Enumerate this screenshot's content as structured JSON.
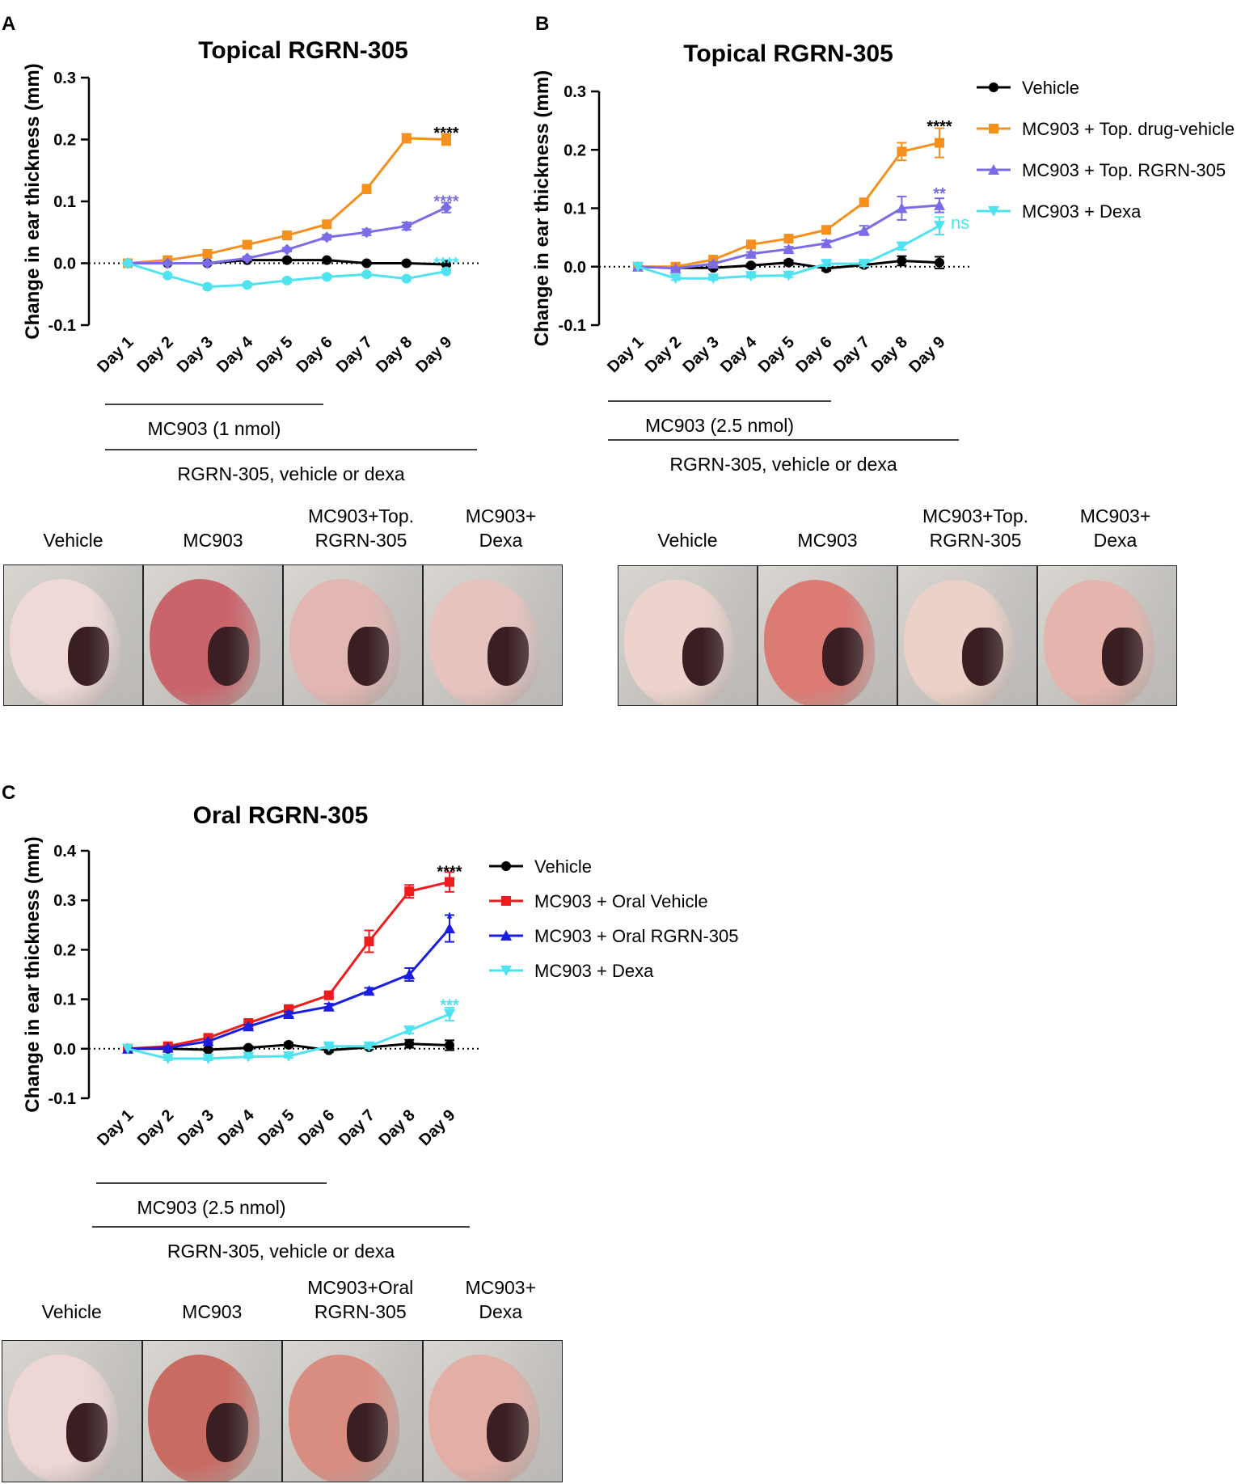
{
  "panels": [
    {
      "letter": "A",
      "title": "Topical RGRN-305",
      "bar1_label": "MC903 (1 nmol)",
      "bar2_label": "RGRN-305, vehicle or dexa",
      "photo_captions": [
        [
          "Vehicle"
        ],
        [
          "MC903"
        ],
        [
          "MC903+Top.",
          "RGRN-305"
        ],
        [
          "MC903+",
          "Dexa"
        ]
      ],
      "photo_tints": [
        "#eed9d6",
        "#c9656a",
        "#e2b6b2",
        "#e6c3bf"
      ]
    },
    {
      "letter": "B",
      "title": "Topical RGRN-305",
      "bar1_label": "MC903 (2.5 nmol)",
      "bar2_label": "RGRN-305, vehicle or dexa",
      "photo_captions": [
        [
          "Vehicle"
        ],
        [
          "MC903"
        ],
        [
          "MC903+Top.",
          "RGRN-305"
        ],
        [
          "MC903+",
          "Dexa"
        ]
      ],
      "photo_tints": [
        "#ecd3cd",
        "#dc7a74",
        "#ecd1c8",
        "#e5b5ad"
      ]
    },
    {
      "letter": "C",
      "title": "Oral RGRN-305",
      "bar1_label": "MC903 (2.5 nmol)",
      "bar2_label": "RGRN-305, vehicle or dexa",
      "photo_captions": [
        [
          "Vehicle"
        ],
        [
          "MC903"
        ],
        [
          "MC903+Oral",
          "RGRN-305"
        ],
        [
          "MC903+",
          "Dexa"
        ]
      ],
      "photo_tints": [
        "#edd6d3",
        "#c96b62",
        "#d98c80",
        "#e3aea5"
      ]
    }
  ],
  "chart_data": [
    {
      "type": "line",
      "title": "Topical RGRN-305",
      "ylabel": "Change in ear thickness (mm)",
      "xlabel": "",
      "categories": [
        "Day 1",
        "Day 2",
        "Day 3",
        "Day 4",
        "Day 5",
        "Day 6",
        "Day 7",
        "Day 8",
        "Day 9"
      ],
      "ylim": [
        -0.1,
        0.3
      ],
      "yticks": [
        -0.1,
        0.0,
        0.1,
        0.2,
        0.3
      ],
      "ytick_labels": [
        "-0.1",
        "0.0",
        "0.1",
        "0.2",
        "0.3"
      ],
      "series": [
        {
          "name": "Vehicle",
          "color": "#000000",
          "marker": "circle",
          "values": [
            0.0,
            0.0,
            0.0,
            0.005,
            0.005,
            0.005,
            0.0,
            0.0,
            -0.002
          ],
          "errors": [
            0,
            0,
            0,
            0.002,
            0.002,
            0.002,
            0.002,
            0.002,
            0.002
          ]
        },
        {
          "name": "MC903 + Top. drug-vehicle",
          "color": "#f5901e",
          "marker": "square",
          "values": [
            0.0,
            0.005,
            0.015,
            0.03,
            0.045,
            0.063,
            0.12,
            0.202,
            0.2
          ],
          "errors": [
            0,
            0.002,
            0.003,
            0.003,
            0.004,
            0.004,
            0.007,
            0.007,
            0.009
          ]
        },
        {
          "name": "MC903 + Top. RGRN-305",
          "color": "#7a6ce6",
          "marker": "diamond",
          "values": [
            0.0,
            0.0,
            0.0,
            0.008,
            0.022,
            0.042,
            0.05,
            0.06,
            0.09
          ],
          "errors": [
            0,
            0.002,
            0.002,
            0.003,
            0.003,
            0.004,
            0.005,
            0.006,
            0.008
          ]
        },
        {
          "name": "MC903 + Dexa",
          "color": "#4fe3f0",
          "marker": "circle",
          "values": [
            0.0,
            -0.02,
            -0.038,
            -0.035,
            -0.028,
            -0.022,
            -0.018,
            -0.025,
            -0.013
          ],
          "errors": [
            0,
            0.002,
            0.003,
            0.003,
            0.003,
            0.003,
            0.003,
            0.003,
            0.003
          ]
        }
      ],
      "annotations": [
        {
          "text": "****",
          "color": "#000000",
          "x": "Day 9",
          "y": 0.22
        },
        {
          "text": "****",
          "color": "#7a6ce6",
          "x": "Day 9",
          "y": 0.11
        },
        {
          "text": "****",
          "color": "#4fe3f0",
          "x": "Day 9",
          "y": 0.01
        }
      ],
      "legend": null
    },
    {
      "type": "line",
      "title": "Topical RGRN-305",
      "ylabel": "Change in ear thickness (mm)",
      "xlabel": "",
      "categories": [
        "Day 1",
        "Day 2",
        "Day 3",
        "Day 4",
        "Day 5",
        "Day 6",
        "Day 7",
        "Day 8",
        "Day 9"
      ],
      "ylim": [
        -0.1,
        0.3
      ],
      "yticks": [
        -0.1,
        0.0,
        0.1,
        0.2,
        0.3
      ],
      "ytick_labels": [
        "-0.1",
        "0.0",
        "0.1",
        "0.2",
        "0.3"
      ],
      "series": [
        {
          "name": "Vehicle",
          "color": "#000000",
          "marker": "circle",
          "values": [
            0.0,
            -0.002,
            -0.002,
            0.002,
            0.007,
            -0.003,
            0.003,
            0.01,
            0.007
          ],
          "errors": [
            0,
            0.002,
            0.003,
            0.003,
            0.004,
            0.004,
            0.004,
            0.008,
            0.01
          ]
        },
        {
          "name": "MC903 + Top. drug-vehicle",
          "color": "#f5901e",
          "marker": "square",
          "values": [
            0.0,
            0.0,
            0.012,
            0.038,
            0.048,
            0.063,
            0.11,
            0.197,
            0.212
          ],
          "errors": [
            0,
            0.002,
            0.003,
            0.003,
            0.004,
            0.004,
            0.005,
            0.015,
            0.025
          ]
        },
        {
          "name": "MC903 + Top. RGRN-305",
          "color": "#7a6ce6",
          "marker": "triangle",
          "values": [
            0.0,
            -0.003,
            0.005,
            0.022,
            0.03,
            0.04,
            0.062,
            0.1,
            0.105
          ],
          "errors": [
            0,
            0.002,
            0.003,
            0.003,
            0.004,
            0.005,
            0.008,
            0.02,
            0.012
          ]
        },
        {
          "name": "MC903 + Dexa",
          "color": "#4fe3f0",
          "marker": "inverted-triangle",
          "values": [
            0.0,
            -0.02,
            -0.02,
            -0.016,
            -0.015,
            0.005,
            0.005,
            0.035,
            0.07
          ],
          "errors": [
            0,
            0.003,
            0.003,
            0.003,
            0.003,
            0.004,
            0.004,
            0.006,
            0.015
          ]
        }
      ],
      "annotations": [
        {
          "text": "****",
          "color": "#000000",
          "x": "Day 9",
          "y": 0.25
        },
        {
          "text": "**",
          "color": "#7a6ce6",
          "x": "Day 9",
          "y": 0.135
        },
        {
          "text": "ns",
          "color": "#4fe3f0",
          "x": "Day 9",
          "y": 0.07
        }
      ],
      "legend": {
        "placement": "right",
        "entries": [
          "Vehicle",
          "MC903 + Top. drug-vehicle",
          "MC903 + Top. RGRN-305",
          "MC903 + Dexa"
        ]
      }
    },
    {
      "type": "line",
      "title": "Oral RGRN-305",
      "ylabel": "Change in ear thickness (mm)",
      "xlabel": "",
      "categories": [
        "Day 1",
        "Day 2",
        "Day 3",
        "Day 4",
        "Day 5",
        "Day 6",
        "Day 7",
        "Day 8",
        "Day 9"
      ],
      "ylim": [
        -0.1,
        0.4
      ],
      "yticks": [
        -0.1,
        0.0,
        0.1,
        0.2,
        0.3,
        0.4
      ],
      "ytick_labels": [
        "-0.1",
        "0.0",
        "0.1",
        "0.2",
        "0.3",
        "0.4"
      ],
      "series": [
        {
          "name": "Vehicle",
          "color": "#000000",
          "marker": "circle",
          "values": [
            0.0,
            0.0,
            -0.002,
            0.002,
            0.008,
            -0.003,
            0.003,
            0.01,
            0.007
          ],
          "errors": [
            0,
            0.002,
            0.003,
            0.003,
            0.004,
            0.004,
            0.004,
            0.008,
            0.01
          ]
        },
        {
          "name": "MC903 + Oral Vehicle",
          "color": "#ee1c1c",
          "marker": "square",
          "values": [
            0.0,
            0.005,
            0.022,
            0.052,
            0.08,
            0.108,
            0.217,
            0.318,
            0.337
          ],
          "errors": [
            0,
            0.002,
            0.003,
            0.004,
            0.005,
            0.006,
            0.022,
            0.013,
            0.02
          ]
        },
        {
          "name": "MC903 + Oral RGRN-305",
          "color": "#1a1ee0",
          "marker": "triangle",
          "values": [
            0.0,
            0.002,
            0.015,
            0.045,
            0.07,
            0.085,
            0.117,
            0.15,
            0.243
          ],
          "errors": [
            0,
            0.002,
            0.003,
            0.004,
            0.005,
            0.006,
            0.006,
            0.013,
            0.027
          ]
        },
        {
          "name": "MC903 + Dexa",
          "color": "#4fe3f0",
          "marker": "inverted-triangle",
          "values": [
            0.0,
            -0.02,
            -0.02,
            -0.016,
            -0.015,
            0.005,
            0.005,
            0.037,
            0.07
          ],
          "errors": [
            0,
            0.003,
            0.003,
            0.003,
            0.003,
            0.004,
            0.004,
            0.006,
            0.013
          ]
        }
      ],
      "annotations": [
        {
          "text": "****",
          "color": "#000000",
          "x": "Day 9",
          "y": 0.37
        },
        {
          "text": "*",
          "color": "#1a1ee0",
          "x": "Day 9",
          "y": 0.275
        },
        {
          "text": "***",
          "color": "#4fe3f0",
          "x": "Day 9",
          "y": 0.1
        }
      ],
      "legend": {
        "placement": "right",
        "entries": [
          "Vehicle",
          "MC903 + Oral Vehicle",
          "MC903 + Oral RGRN-305",
          "MC903 + Dexa"
        ]
      }
    }
  ]
}
